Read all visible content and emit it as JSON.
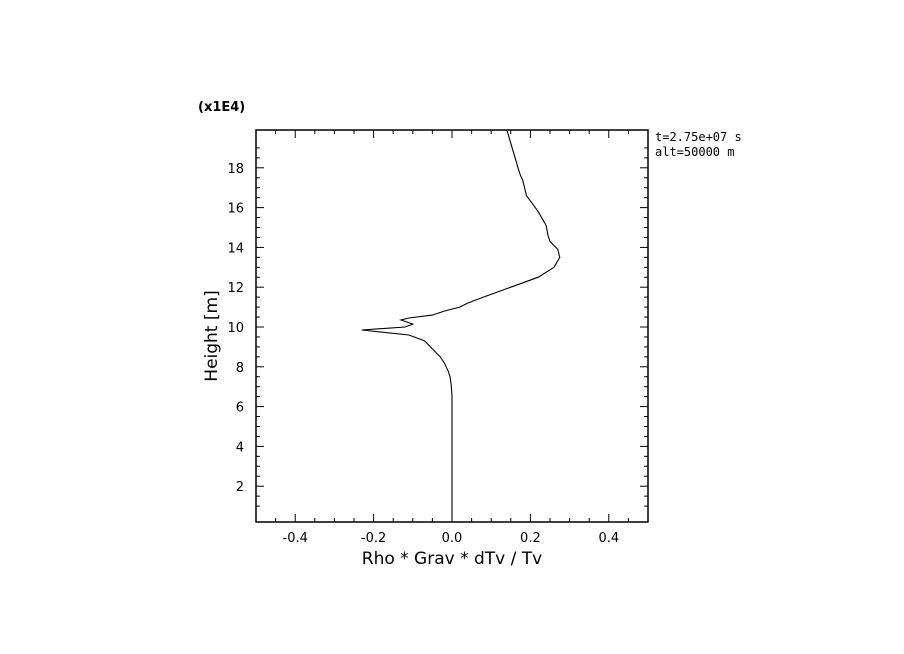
{
  "chart_data": {
    "type": "line",
    "title": "",
    "xlabel": "Rho * Grav * dTv / Tv",
    "ylabel": "Height [m]",
    "y_scale_note": "(x1E4)",
    "annotations": [
      "t=2.75e+07 s",
      "alt=50000 m"
    ],
    "xlim": [
      -0.5,
      0.5
    ],
    "ylim": [
      0.2,
      19.9
    ],
    "x_ticks": [
      -0.4,
      -0.2,
      0.0,
      0.2,
      0.4
    ],
    "x_tick_labels": [
      "-0.4",
      "-0.2",
      "0.0",
      "0.2",
      "0.4"
    ],
    "y_ticks": [
      2,
      4,
      6,
      8,
      10,
      12,
      14,
      16,
      18
    ],
    "y_tick_labels": [
      "2",
      "4",
      "6",
      "8",
      "10",
      "12",
      "14",
      "16",
      "18"
    ],
    "grid": false,
    "series": [
      {
        "color": "#000000",
        "x": [
          0.0,
          0.0,
          0.0,
          -0.002,
          -0.005,
          -0.01,
          -0.02,
          -0.03,
          -0.05,
          -0.07,
          -0.11,
          -0.23,
          -0.12,
          -0.1,
          -0.13,
          -0.11,
          -0.05,
          -0.02,
          0.02,
          0.04,
          0.08,
          0.15,
          0.22,
          0.26,
          0.275,
          0.27,
          0.25,
          0.245,
          0.24,
          0.22,
          0.19,
          0.18,
          0.175,
          0.17,
          0.14
        ],
        "y": [
          0.3,
          5.0,
          6.5,
          7.1,
          7.5,
          7.8,
          8.2,
          8.5,
          8.9,
          9.3,
          9.6,
          9.85,
          10.0,
          10.15,
          10.35,
          10.45,
          10.6,
          10.8,
          11.0,
          11.2,
          11.5,
          12.0,
          12.5,
          13.0,
          13.5,
          13.9,
          14.3,
          14.6,
          15.1,
          15.8,
          16.6,
          17.4,
          17.6,
          17.9,
          19.9
        ]
      }
    ]
  }
}
